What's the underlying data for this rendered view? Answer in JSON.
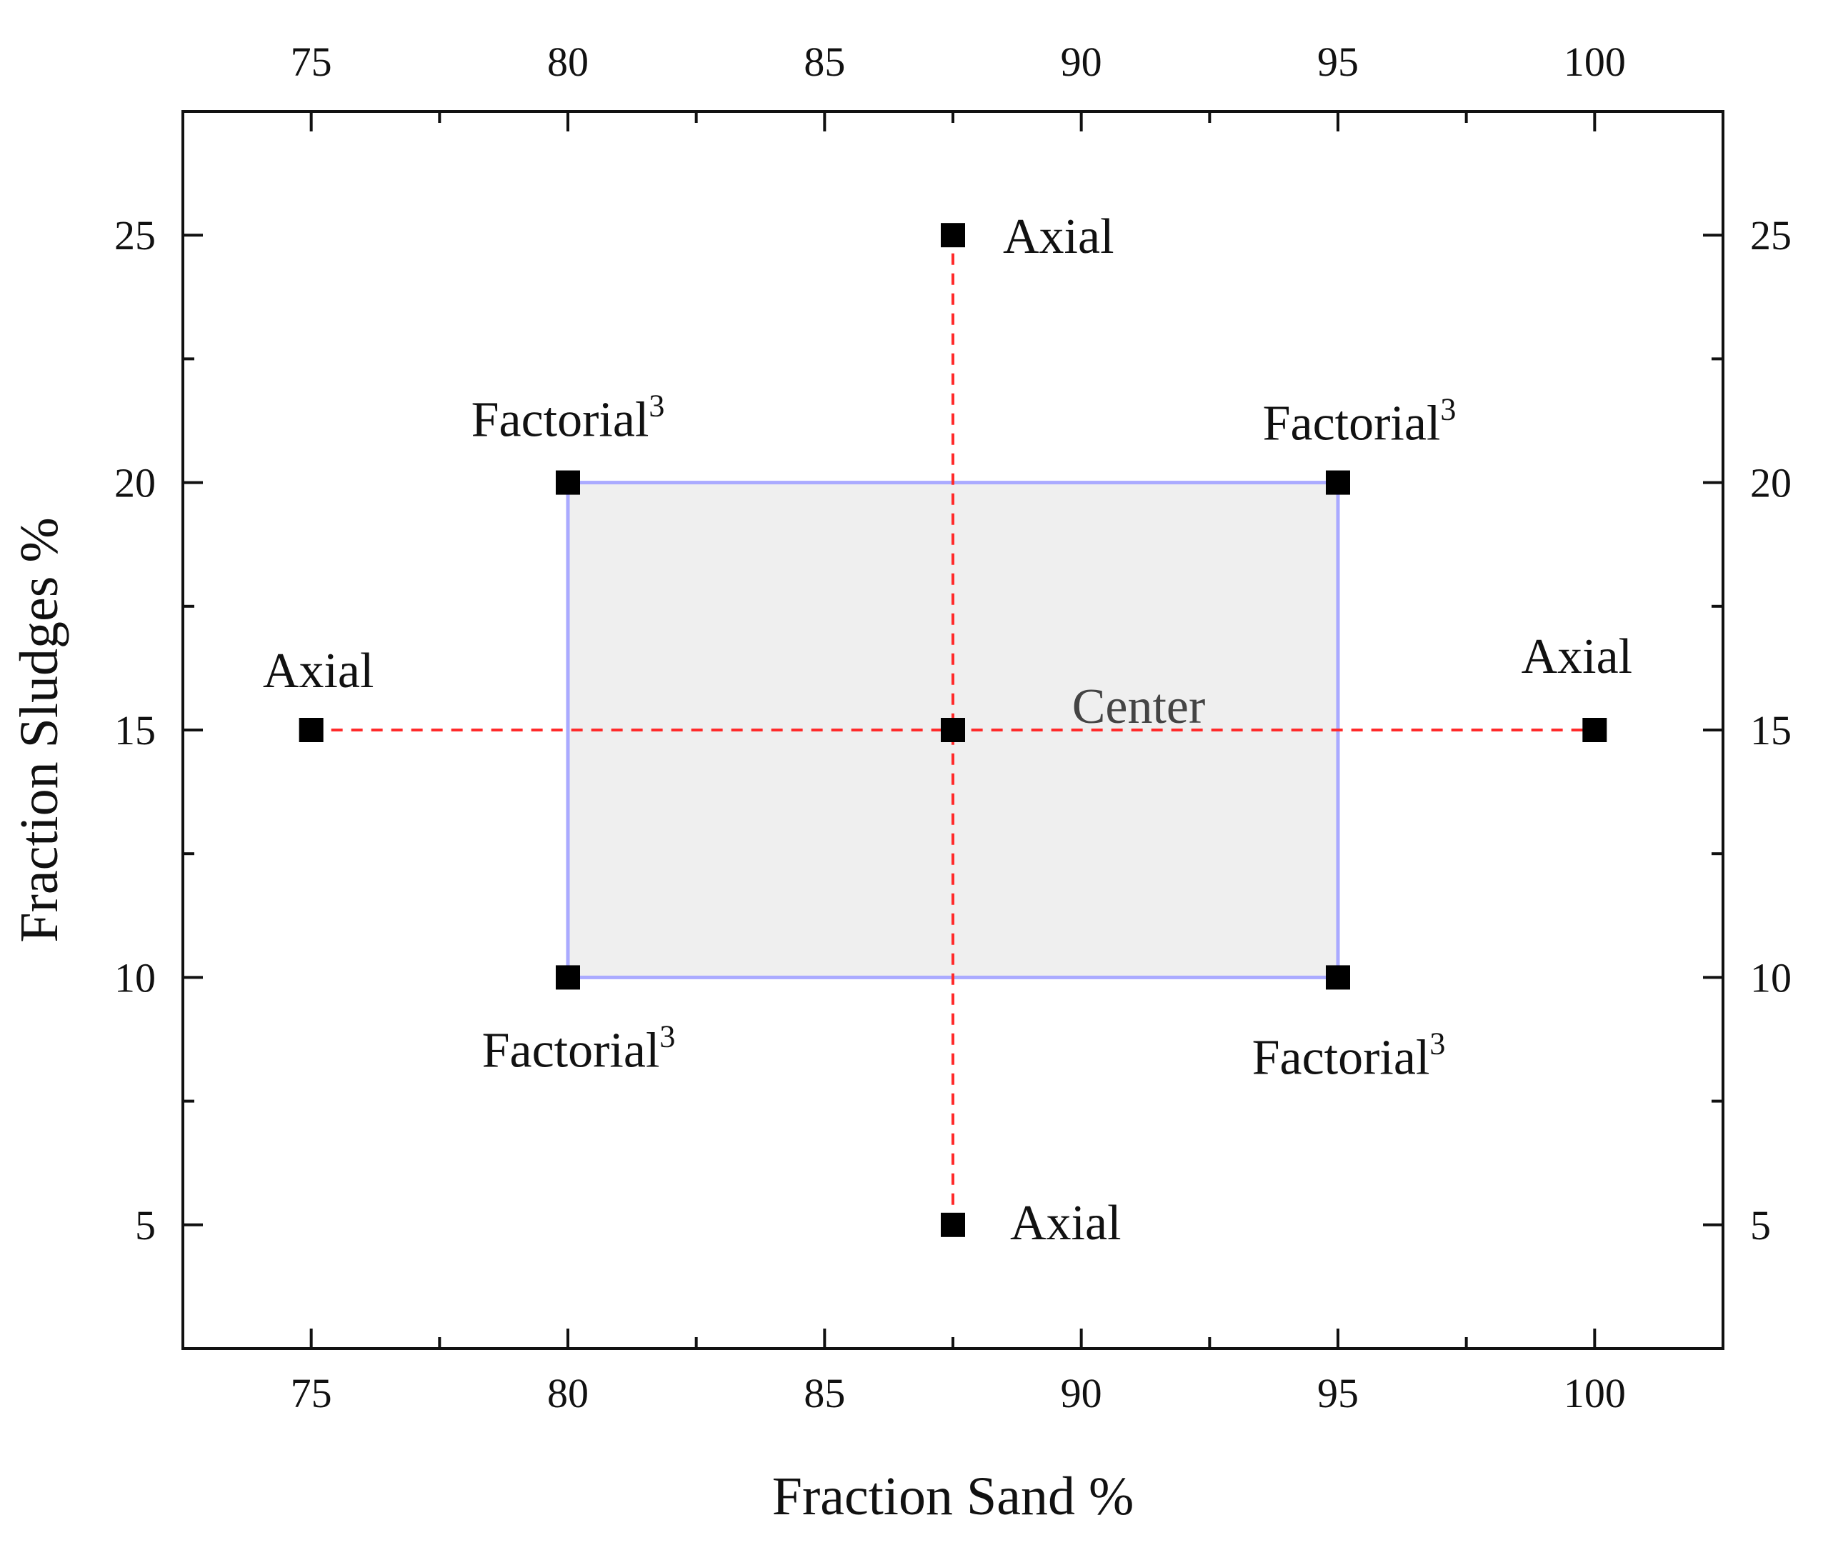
{
  "chart_data": {
    "type": "scatter",
    "xlabel": "Fraction Sand  %",
    "ylabel": "Fraction Sludges %",
    "xlim": [
      72.5,
      102.5
    ],
    "ylim": [
      2.5,
      27.5
    ],
    "x_ticks": [
      75,
      80,
      85,
      90,
      95,
      100
    ],
    "y_ticks": [
      5,
      10,
      15,
      20,
      25
    ],
    "x_minor_ticks": [
      77.5,
      82.5,
      87.5,
      92.5,
      97.5
    ],
    "y_minor_ticks": [
      7.5,
      12.5,
      17.5,
      22.5
    ],
    "mirror_axes": true,
    "grid": false,
    "colors": {
      "points": "#000000",
      "dashed_lines": "#ff2a2a",
      "region_fill": "#efefef",
      "region_border": "#aaaaff"
    },
    "factorial_region": {
      "x": [
        80,
        95
      ],
      "y": [
        10,
        20
      ]
    },
    "dashed_lines": [
      {
        "x": [
          75,
          100
        ],
        "y": [
          15,
          15
        ]
      },
      {
        "x": [
          87.5,
          87.5
        ],
        "y": [
          5,
          25
        ]
      }
    ],
    "points": [
      {
        "x": 87.5,
        "y": 25,
        "label": "Axial",
        "sup": ""
      },
      {
        "x": 87.5,
        "y": 5,
        "label": "Axial",
        "sup": ""
      },
      {
        "x": 75,
        "y": 15,
        "label": "Axial",
        "sup": ""
      },
      {
        "x": 100,
        "y": 15,
        "label": "Axial",
        "sup": ""
      },
      {
        "x": 80,
        "y": 20,
        "label": "Factorial",
        "sup": "3"
      },
      {
        "x": 95,
        "y": 20,
        "label": "Factorial",
        "sup": "3"
      },
      {
        "x": 80,
        "y": 10,
        "label": "Factorial",
        "sup": "3"
      },
      {
        "x": 95,
        "y": 10,
        "label": "Factorial",
        "sup": "3"
      },
      {
        "x": 87.5,
        "y": 15,
        "label": "Center",
        "sup": ""
      }
    ]
  }
}
